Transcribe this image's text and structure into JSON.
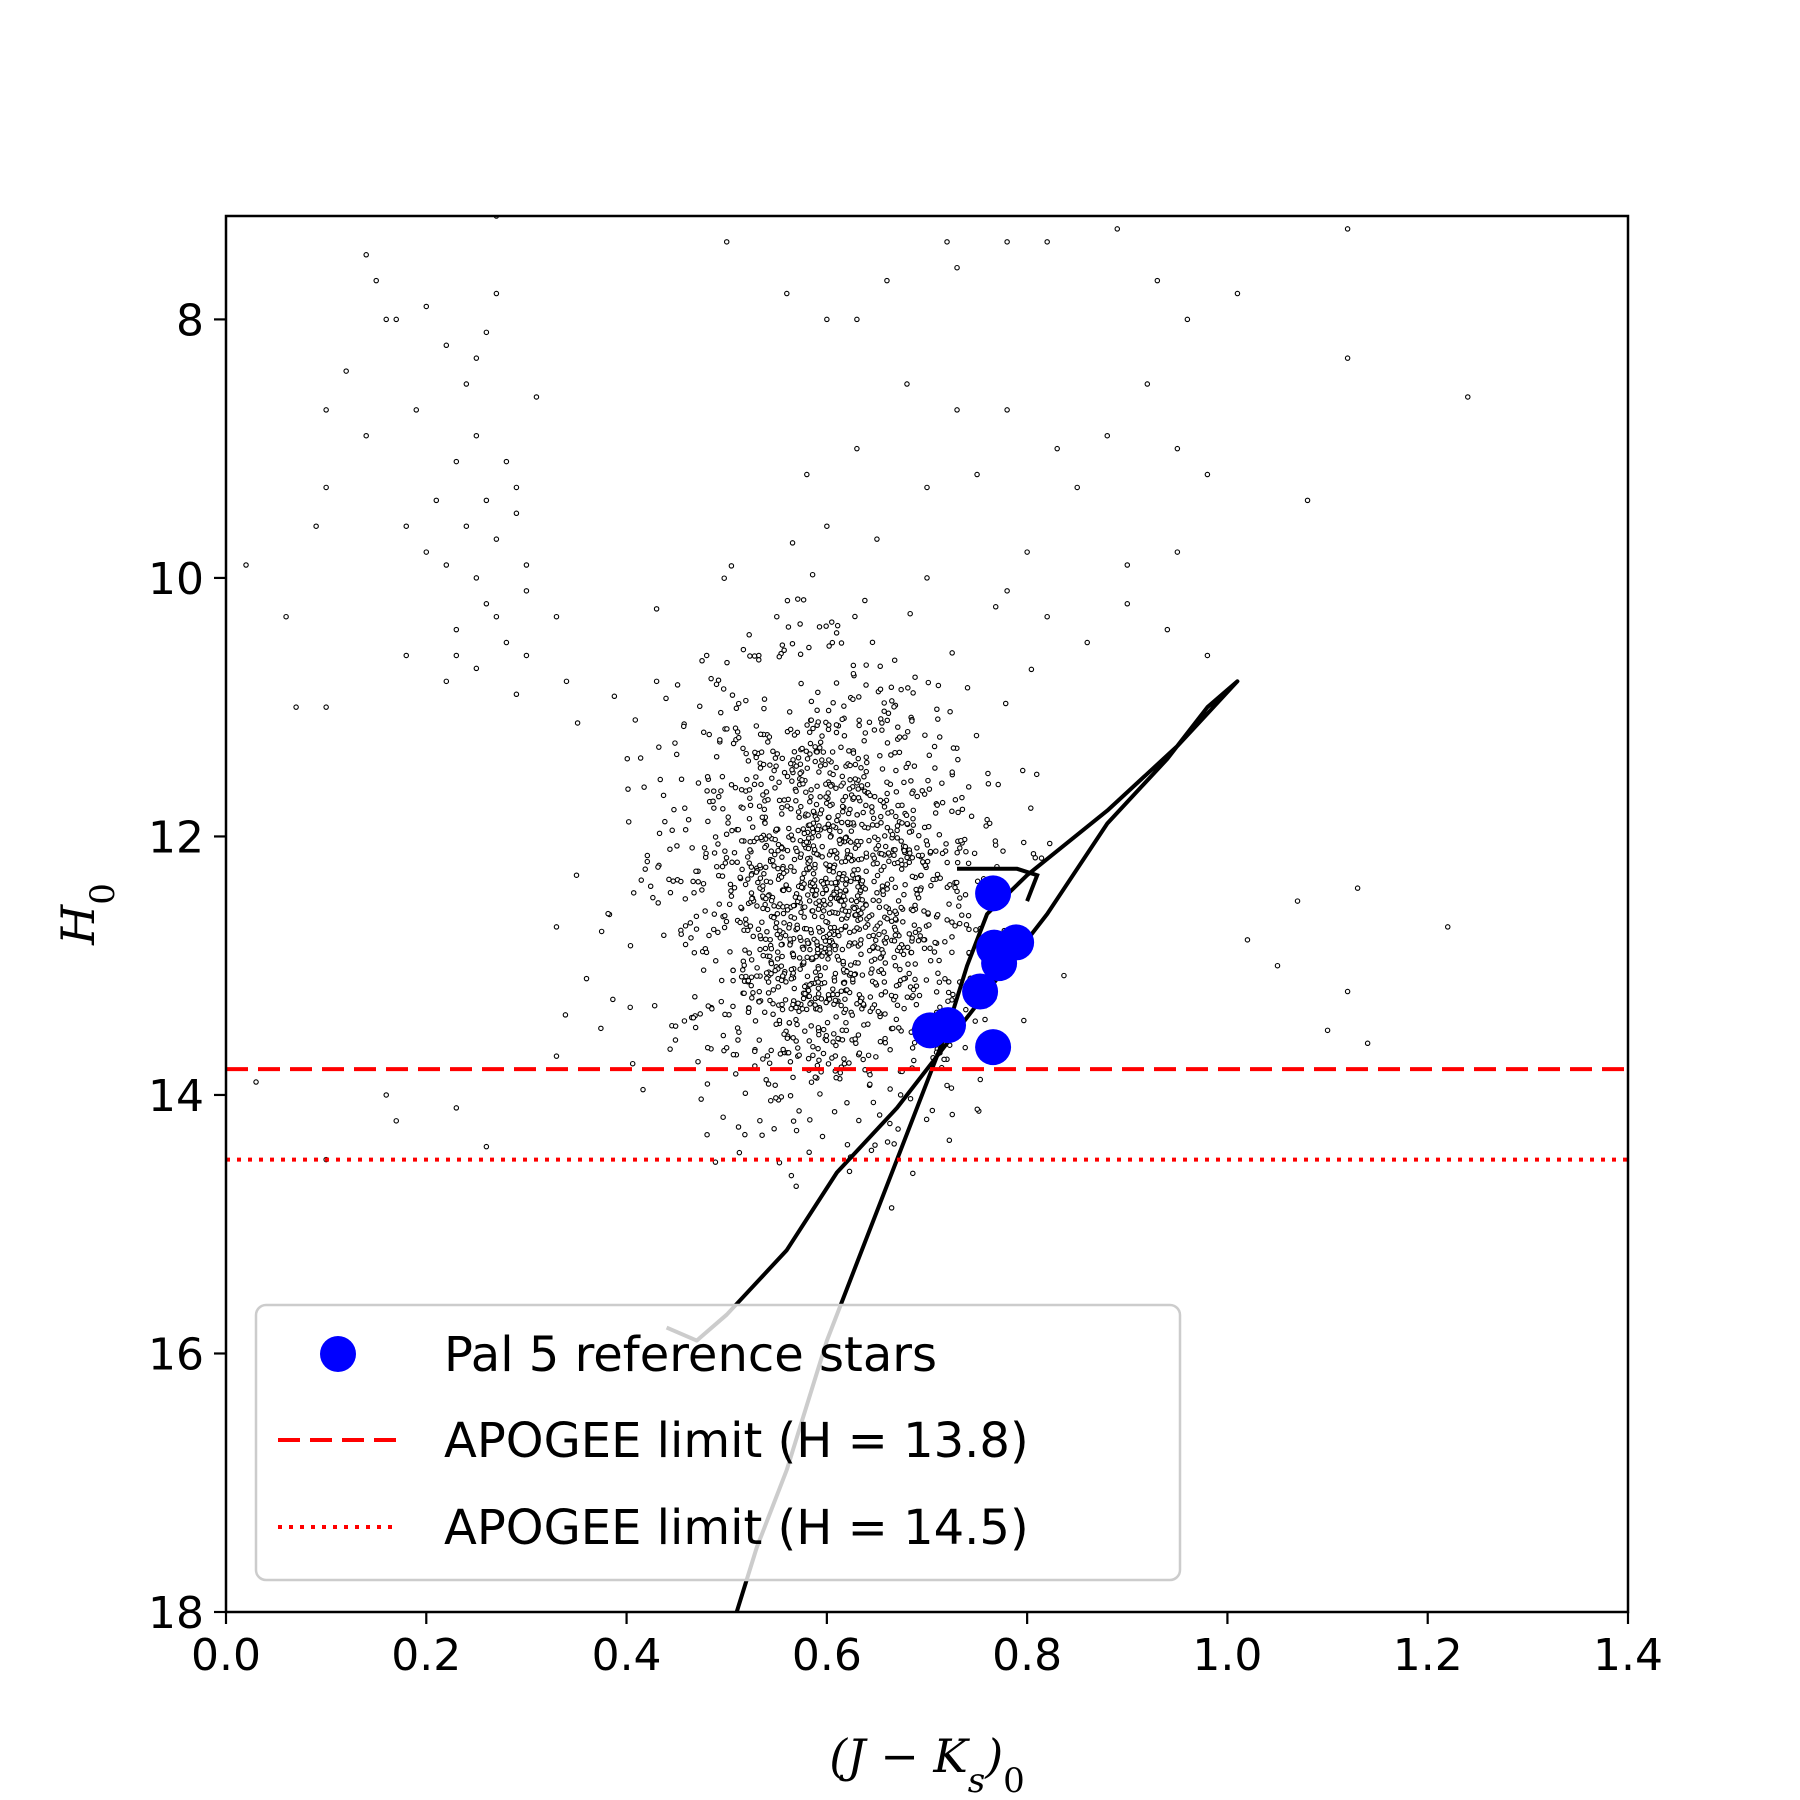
{
  "chart_data": {
    "type": "scatter",
    "xlabel": "(J − Ks)0",
    "ylabel": "H0",
    "xlim": [
      0.0,
      1.4
    ],
    "ylim": [
      18,
      7.2
    ],
    "y_inverted": true,
    "grid": false,
    "xticks": [
      "0.0",
      "0.2",
      "0.4",
      "0.6",
      "0.8",
      "1.0",
      "1.2",
      "1.4"
    ],
    "yticks": [
      "8",
      "10",
      "12",
      "14",
      "16",
      "18"
    ],
    "legend_position": "lower-left",
    "field_stars": {
      "color": "#000000",
      "points": [
        [
          0.12,
          8.4
        ],
        [
          0.1,
          8.7
        ],
        [
          0.14,
          8.9
        ],
        [
          0.1,
          9.3
        ],
        [
          0.09,
          9.6
        ],
        [
          0.15,
          7.7
        ],
        [
          0.17,
          8.0
        ],
        [
          0.2,
          7.9
        ],
        [
          0.22,
          7.1
        ],
        [
          0.27,
          7.2
        ],
        [
          0.27,
          7.8
        ],
        [
          0.25,
          8.9
        ],
        [
          0.23,
          9.1
        ],
        [
          0.26,
          9.4
        ],
        [
          0.29,
          9.3
        ],
        [
          0.24,
          9.6
        ],
        [
          0.27,
          9.7
        ],
        [
          0.22,
          9.9
        ],
        [
          0.25,
          10.0
        ],
        [
          0.3,
          10.1
        ],
        [
          0.26,
          10.2
        ],
        [
          0.23,
          10.4
        ],
        [
          0.28,
          10.5
        ],
        [
          0.25,
          10.7
        ],
        [
          0.22,
          10.8
        ],
        [
          0.29,
          10.9
        ],
        [
          0.2,
          9.8
        ],
        [
          0.18,
          9.6
        ],
        [
          0.3,
          9.9
        ],
        [
          0.28,
          9.1
        ],
        [
          0.24,
          8.5
        ],
        [
          0.22,
          8.2
        ],
        [
          0.19,
          8.7
        ],
        [
          0.31,
          8.6
        ],
        [
          0.26,
          8.1
        ],
        [
          0.21,
          9.4
        ],
        [
          0.23,
          10.6
        ],
        [
          0.27,
          10.3
        ],
        [
          0.3,
          10.6
        ],
        [
          0.06,
          10.3
        ],
        [
          0.07,
          11.0
        ],
        [
          0.1,
          11.0
        ],
        [
          0.18,
          10.6
        ],
        [
          0.33,
          10.3
        ],
        [
          0.34,
          10.8
        ],
        [
          0.02,
          9.9
        ],
        [
          0.14,
          7.5
        ],
        [
          0.16,
          8.0
        ],
        [
          0.25,
          8.3
        ],
        [
          0.29,
          9.5
        ],
        [
          0.5,
          7.4
        ],
        [
          0.56,
          7.8
        ],
        [
          0.6,
          8.0
        ],
        [
          0.63,
          8.0
        ],
        [
          0.66,
          7.7
        ],
        [
          0.72,
          7.4
        ],
        [
          0.73,
          7.6
        ],
        [
          0.78,
          7.4
        ],
        [
          0.82,
          7.4
        ],
        [
          0.84,
          7.1
        ],
        [
          0.89,
          7.3
        ],
        [
          0.93,
          7.7
        ],
        [
          0.96,
          8.0
        ],
        [
          1.01,
          7.8
        ],
        [
          1.12,
          7.3
        ],
        [
          1.12,
          8.3
        ],
        [
          1.24,
          8.6
        ],
        [
          0.68,
          8.5
        ],
        [
          0.73,
          8.7
        ],
        [
          0.78,
          8.7
        ],
        [
          0.83,
          9.0
        ],
        [
          0.88,
          8.9
        ],
        [
          0.92,
          8.5
        ],
        [
          0.95,
          9.0
        ],
        [
          0.98,
          9.2
        ],
        [
          1.08,
          9.4
        ],
        [
          0.85,
          9.3
        ],
        [
          0.75,
          9.2
        ],
        [
          0.7,
          9.3
        ],
        [
          0.63,
          9.0
        ],
        [
          0.58,
          9.2
        ],
        [
          0.6,
          9.6
        ],
        [
          0.65,
          9.7
        ],
        [
          0.7,
          10.0
        ],
        [
          0.78,
          10.1
        ],
        [
          0.82,
          10.3
        ],
        [
          0.86,
          10.5
        ],
        [
          0.9,
          10.2
        ],
        [
          0.94,
          10.4
        ],
        [
          0.98,
          10.6
        ],
        [
          0.8,
          9.8
        ],
        [
          0.9,
          9.9
        ],
        [
          0.95,
          9.8
        ],
        [
          0.55,
          10.3
        ],
        [
          0.48,
          10.6
        ],
        [
          0.43,
          10.8
        ],
        [
          0.35,
          12.3
        ],
        [
          0.33,
          12.7
        ],
        [
          0.36,
          13.1
        ],
        [
          0.33,
          13.7
        ],
        [
          0.16,
          14.0
        ],
        [
          0.17,
          14.2
        ],
        [
          0.23,
          14.1
        ],
        [
          0.26,
          14.4
        ],
        [
          0.03,
          13.9
        ],
        [
          0.1,
          14.5
        ],
        [
          1.02,
          12.8
        ],
        [
          1.05,
          13.0
        ],
        [
          1.1,
          13.5
        ],
        [
          1.12,
          13.2
        ],
        [
          1.13,
          12.4
        ],
        [
          1.14,
          13.6
        ],
        [
          1.22,
          12.7
        ],
        [
          1.07,
          12.5
        ]
      ],
      "dense_region": {
        "description": "main cluster",
        "x_range": [
          0.33,
          1.0
        ],
        "y_range": [
          9.7,
          14.9
        ]
      }
    },
    "isochrone": {
      "color": "#000000",
      "points": [
        [
          0.51,
          18.0
        ],
        [
          0.53,
          17.5
        ],
        [
          0.56,
          16.9
        ],
        [
          0.6,
          15.9
        ],
        [
          0.63,
          15.3
        ],
        [
          0.67,
          14.5
        ],
        [
          0.72,
          13.5
        ],
        [
          0.74,
          13.0
        ],
        [
          0.76,
          12.6
        ],
        [
          0.8,
          12.3
        ],
        [
          0.88,
          11.8
        ],
        [
          0.95,
          11.3
        ],
        [
          1.01,
          10.8
        ],
        [
          0.98,
          11.0
        ],
        [
          0.94,
          11.4
        ],
        [
          0.88,
          11.9
        ],
        [
          0.82,
          12.6
        ],
        [
          0.76,
          13.2
        ],
        [
          0.72,
          13.6
        ],
        [
          0.67,
          14.1
        ],
        [
          0.61,
          14.6
        ],
        [
          0.56,
          15.2
        ],
        [
          0.5,
          15.7
        ],
        [
          0.47,
          15.9
        ],
        [
          0.44,
          15.8
        ]
      ],
      "hb_points": [
        [
          0.73,
          12.25
        ],
        [
          0.79,
          12.25
        ],
        [
          0.81,
          12.3
        ],
        [
          0.8,
          12.5
        ]
      ]
    },
    "series": [
      {
        "name": "Pal 5 reference stars",
        "color": "#0000ff",
        "x": [
          0.766,
          0.767,
          0.789,
          0.772,
          0.753,
          0.703,
          0.721,
          0.766
        ],
        "y": [
          12.44,
          12.86,
          12.82,
          12.98,
          13.2,
          13.5,
          13.46,
          13.63
        ]
      }
    ],
    "hlines": [
      {
        "name": "APOGEE limit (H = 13.8)",
        "y": 13.8,
        "style": "dashed",
        "color": "#ff0000"
      },
      {
        "name": "APOGEE limit (H = 14.5)",
        "y": 14.5,
        "style": "dotted",
        "color": "#ff0000"
      }
    ]
  }
}
